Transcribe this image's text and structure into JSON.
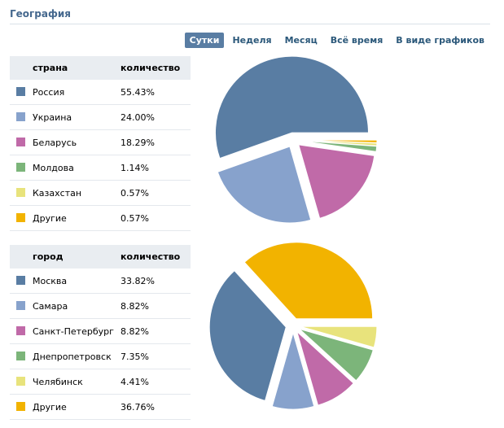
{
  "header": {
    "title": "География",
    "tabs": [
      "Сутки",
      "Неделя",
      "Месяц",
      "Всё время",
      "В виде графиков"
    ],
    "active_tab": 0
  },
  "countries": {
    "header_name": "страна",
    "header_count": "количество",
    "rows": [
      {
        "name": "Россия",
        "value": "55.43%",
        "color": "#597da3"
      },
      {
        "name": "Украина",
        "value": "24.00%",
        "color": "#87a2cc"
      },
      {
        "name": "Беларусь",
        "value": "18.29%",
        "color": "#c06aa8"
      },
      {
        "name": "Молдова",
        "value": "1.14%",
        "color": "#7cb57a"
      },
      {
        "name": "Казахстан",
        "value": "0.57%",
        "color": "#e8e37c"
      },
      {
        "name": "Другие",
        "value": "0.57%",
        "color": "#f2b300"
      }
    ]
  },
  "cities": {
    "header_name": "город",
    "header_count": "количество",
    "rows": [
      {
        "name": "Москва",
        "value": "33.82%",
        "color": "#597da3"
      },
      {
        "name": "Самара",
        "value": "8.82%",
        "color": "#87a2cc"
      },
      {
        "name": "Санкт-Петербург",
        "value": "8.82%",
        "color": "#c06aa8"
      },
      {
        "name": "Днепропетровск",
        "value": "7.35%",
        "color": "#7cb57a"
      },
      {
        "name": "Челябинск",
        "value": "4.41%",
        "color": "#e8e37c"
      },
      {
        "name": "Другие",
        "value": "36.76%",
        "color": "#f2b300"
      }
    ]
  },
  "chart_data": [
    {
      "type": "pie",
      "categories": [
        "Россия",
        "Украина",
        "Беларусь",
        "Молдова",
        "Казахстан",
        "Другие"
      ],
      "values": [
        55.43,
        24.0,
        18.29,
        1.14,
        0.57,
        0.57
      ],
      "colors": [
        "#597da3",
        "#87a2cc",
        "#c06aa8",
        "#7cb57a",
        "#e8e37c",
        "#f2b300"
      ],
      "start_angle_deg": 0,
      "order": [
        0,
        1,
        2,
        3,
        4,
        5
      ],
      "exploded": "all"
    },
    {
      "type": "pie",
      "categories": [
        "Москва",
        "Самара",
        "Санкт-Петербург",
        "Днепропетровск",
        "Челябинск",
        "Другие"
      ],
      "values": [
        33.82,
        8.82,
        8.82,
        7.35,
        4.41,
        36.76
      ],
      "colors": [
        "#597da3",
        "#87a2cc",
        "#c06aa8",
        "#7cb57a",
        "#e8e37c",
        "#f2b300"
      ],
      "start_angle_deg": 0,
      "order": [
        5,
        0,
        1,
        2,
        3,
        4
      ],
      "exploded": "all"
    }
  ]
}
